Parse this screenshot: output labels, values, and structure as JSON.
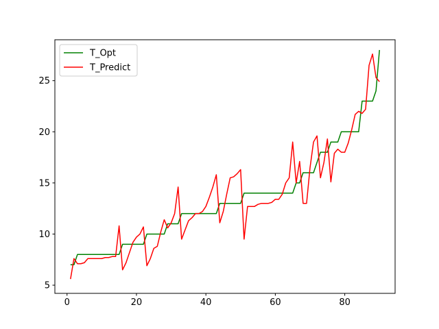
{
  "chart_data": {
    "type": "line",
    "title": "",
    "xlabel": "",
    "ylabel": "",
    "xlim": [
      -3.5,
      94.5
    ],
    "ylim": [
      4.2,
      29.0
    ],
    "xticks": [
      0,
      20,
      40,
      60,
      80
    ],
    "xtick_labels": [
      "0",
      "20",
      "40",
      "60",
      "80"
    ],
    "yticks": [
      5,
      10,
      15,
      20,
      25
    ],
    "ytick_labels": [
      "5",
      "10",
      "15",
      "20",
      "25"
    ],
    "grid": false,
    "legend_position": "top-left",
    "series": [
      {
        "name": "T_Opt",
        "color": "#008000",
        "x": [
          1,
          2,
          3,
          4,
          5,
          6,
          7,
          8,
          9,
          10,
          11,
          12,
          13,
          14,
          15,
          16,
          17,
          18,
          19,
          20,
          21,
          22,
          23,
          24,
          25,
          26,
          27,
          28,
          29,
          30,
          31,
          32,
          33,
          34,
          35,
          36,
          37,
          38,
          39,
          40,
          41,
          42,
          43,
          44,
          45,
          46,
          47,
          48,
          49,
          50,
          51,
          52,
          53,
          54,
          55,
          56,
          57,
          58,
          59,
          60,
          61,
          62,
          63,
          64,
          65,
          66,
          67,
          68,
          69,
          70,
          71,
          72,
          73,
          74,
          75,
          76,
          77,
          78,
          79,
          80,
          81,
          82,
          83,
          84,
          85,
          86,
          87,
          88,
          89,
          90
        ],
        "y": [
          7,
          7,
          8,
          8,
          8,
          8,
          8,
          8,
          8,
          8,
          8,
          8,
          8,
          8,
          8,
          9,
          9,
          9,
          9,
          9,
          9,
          9,
          10,
          10,
          10,
          10,
          10,
          10,
          11,
          11,
          11,
          11,
          12,
          12,
          12,
          12,
          12,
          12,
          12,
          12,
          12,
          12,
          12,
          13,
          13,
          13,
          13,
          13,
          13,
          13,
          14,
          14,
          14,
          14,
          14,
          14,
          14,
          14,
          14,
          14,
          14,
          14,
          14,
          14,
          14,
          15,
          15,
          16,
          16,
          16,
          16,
          17,
          18,
          18,
          18,
          19,
          19,
          19,
          20,
          20,
          20,
          20,
          20,
          20,
          23,
          23,
          23,
          23,
          24,
          28
        ]
      },
      {
        "name": "T_Predict",
        "color": "#ff0000",
        "x": [
          1,
          2,
          3,
          4,
          5,
          6,
          7,
          8,
          9,
          10,
          11,
          12,
          13,
          14,
          15,
          16,
          17,
          18,
          19,
          20,
          21,
          22,
          23,
          24,
          25,
          26,
          27,
          28,
          29,
          30,
          31,
          32,
          33,
          34,
          35,
          36,
          37,
          38,
          39,
          40,
          41,
          42,
          43,
          44,
          45,
          46,
          47,
          48,
          49,
          50,
          51,
          52,
          53,
          54,
          55,
          56,
          57,
          58,
          59,
          60,
          61,
          62,
          63,
          64,
          65,
          66,
          67,
          68,
          69,
          70,
          71,
          72,
          73,
          74,
          75,
          76,
          77,
          78,
          79,
          80,
          81,
          82,
          83,
          84,
          85,
          86,
          87,
          88,
          89,
          90
        ],
        "y": [
          5.6,
          7.6,
          7.1,
          7.1,
          7.2,
          7.6,
          7.6,
          7.6,
          7.6,
          7.6,
          7.7,
          7.7,
          7.8,
          7.8,
          10.8,
          6.5,
          7.2,
          8.2,
          9.2,
          9.7,
          10.0,
          10.7,
          6.9,
          7.6,
          8.6,
          8.8,
          10.2,
          11.4,
          10.6,
          11.1,
          12.0,
          14.6,
          9.5,
          10.4,
          11.3,
          11.6,
          12.0,
          12.0,
          12.2,
          12.7,
          13.6,
          14.6,
          15.8,
          11.1,
          12.2,
          13.9,
          15.5,
          15.6,
          15.9,
          16.3,
          9.5,
          12.7,
          12.7,
          12.7,
          12.9,
          13.0,
          13.0,
          13.0,
          13.1,
          13.4,
          13.4,
          13.9,
          15.0,
          15.5,
          19.0,
          15.0,
          17.1,
          13.0,
          13.0,
          16.5,
          19.0,
          19.6,
          15.5,
          17.0,
          19.3,
          15.1,
          17.9,
          18.3,
          18.0,
          18.0,
          18.9,
          20.2,
          21.7,
          22.0,
          21.8,
          22.2,
          26.5,
          27.6,
          25.3,
          24.9
        ]
      }
    ]
  }
}
